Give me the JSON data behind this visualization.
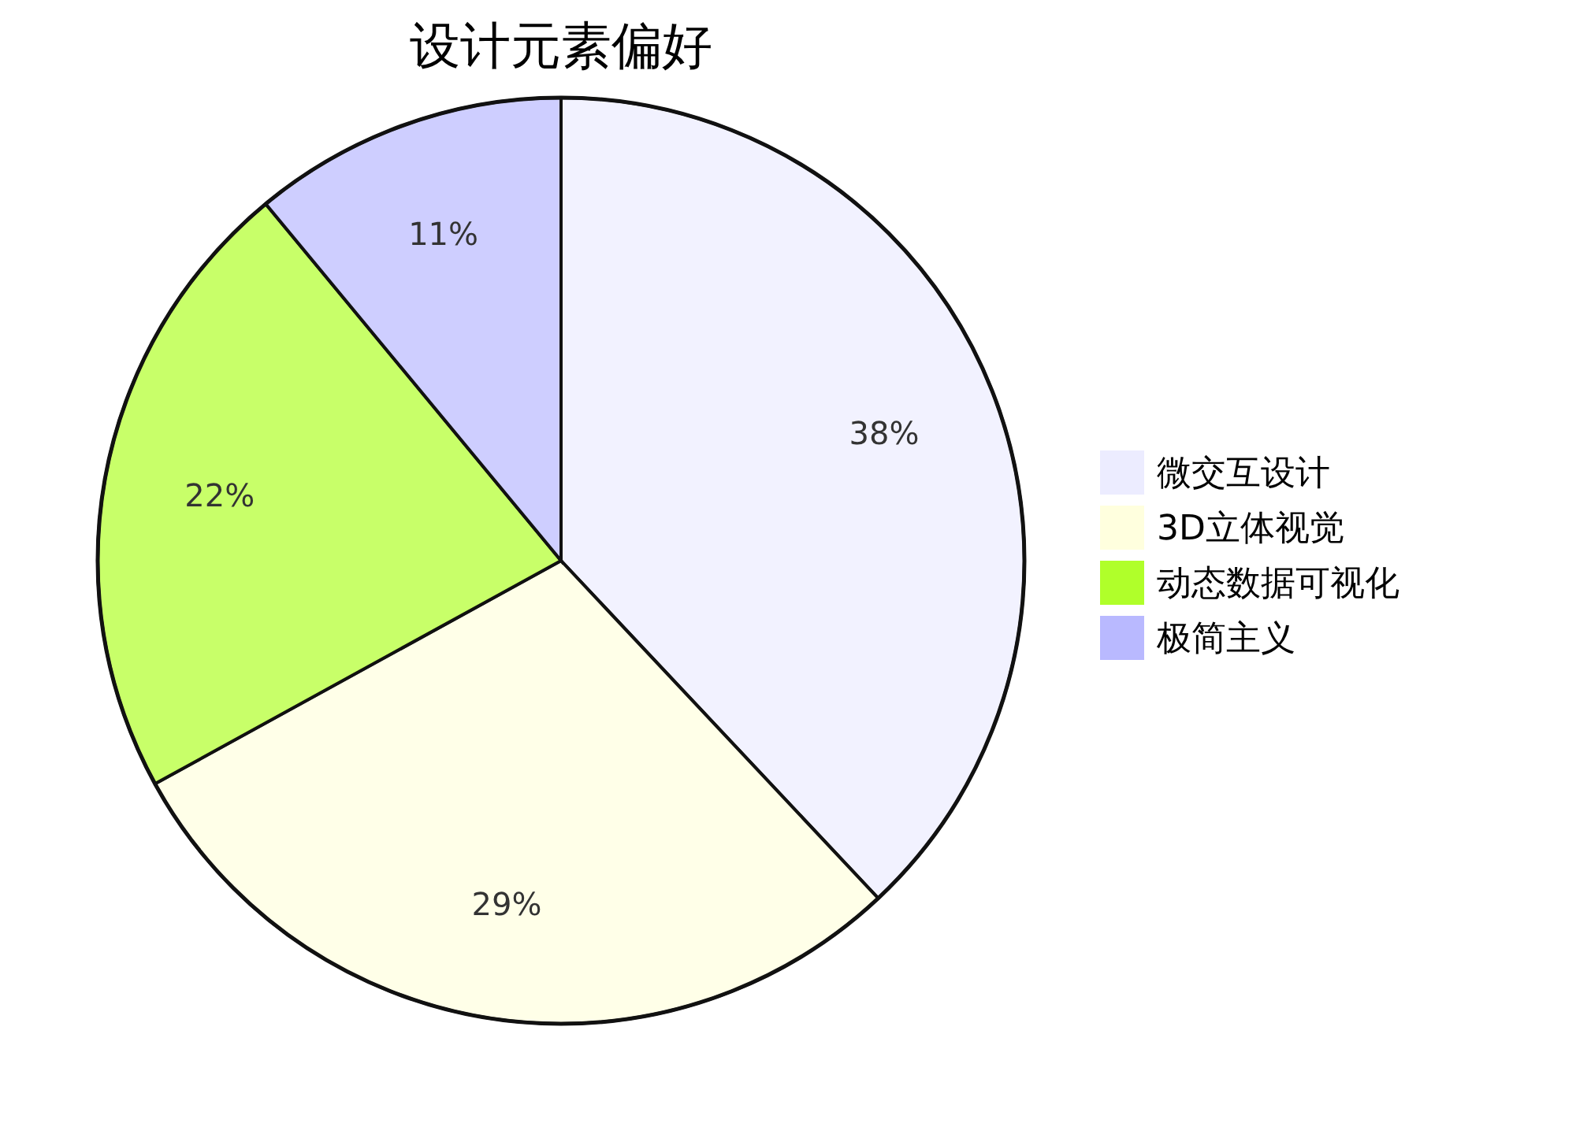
{
  "chart_data": {
    "type": "pie",
    "title": "设计元素偏好",
    "categories": [
      "微交互设计",
      "3D立体视觉",
      "动态数据可视化",
      "极简主义"
    ],
    "values": [
      38,
      29,
      22,
      11
    ],
    "colors": [
      "#ececff",
      "#ffffde",
      "#b0ff2a",
      "#b9b9ff"
    ],
    "value_labels": [
      "38%",
      "29%",
      "22%",
      "11%"
    ],
    "legend": "right"
  }
}
